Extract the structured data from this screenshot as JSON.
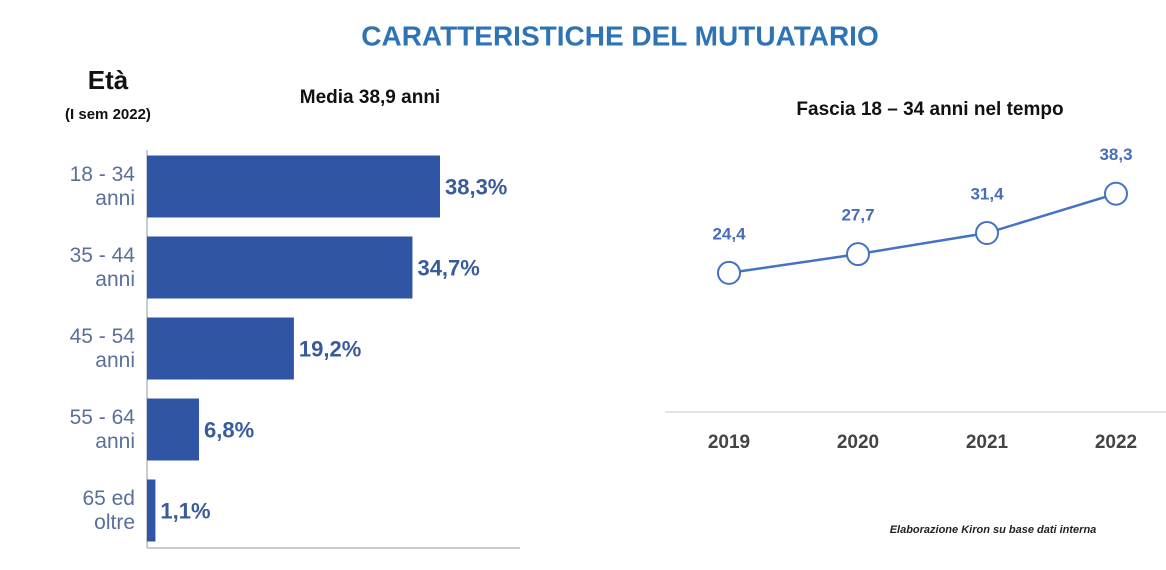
{
  "title": "CARATTERISTICHE DEL MUTUATARIO",
  "source": "Elaborazione Kiron su base dati interna",
  "chart_data": [
    {
      "type": "hbar",
      "label": "Età",
      "sublabel": "(I sem 2022)",
      "title": "Media 38,9 anni",
      "categories": [
        "18 - 34 anni",
        "35 - 44 anni",
        "45 - 54 anni",
        "55 - 64 anni",
        "65 ed oltre"
      ],
      "values": [
        38.3,
        34.7,
        19.2,
        6.8,
        1.1
      ],
      "value_labels": [
        "38,3%",
        "34,7%",
        "19,2%",
        "6,8%",
        "1,1%"
      ],
      "color": "#2f55a4",
      "xlim": [
        0,
        40
      ]
    },
    {
      "type": "line",
      "title": "Fascia 18 – 34 anni nel tempo",
      "categories": [
        "2019",
        "2020",
        "2021",
        "2022"
      ],
      "values": [
        24.4,
        27.7,
        31.4,
        38.3
      ],
      "value_labels": [
        "24,4",
        "27,7",
        "31,4",
        "38,3"
      ],
      "color": "#4472c4",
      "ylim": [
        0,
        40
      ]
    }
  ]
}
